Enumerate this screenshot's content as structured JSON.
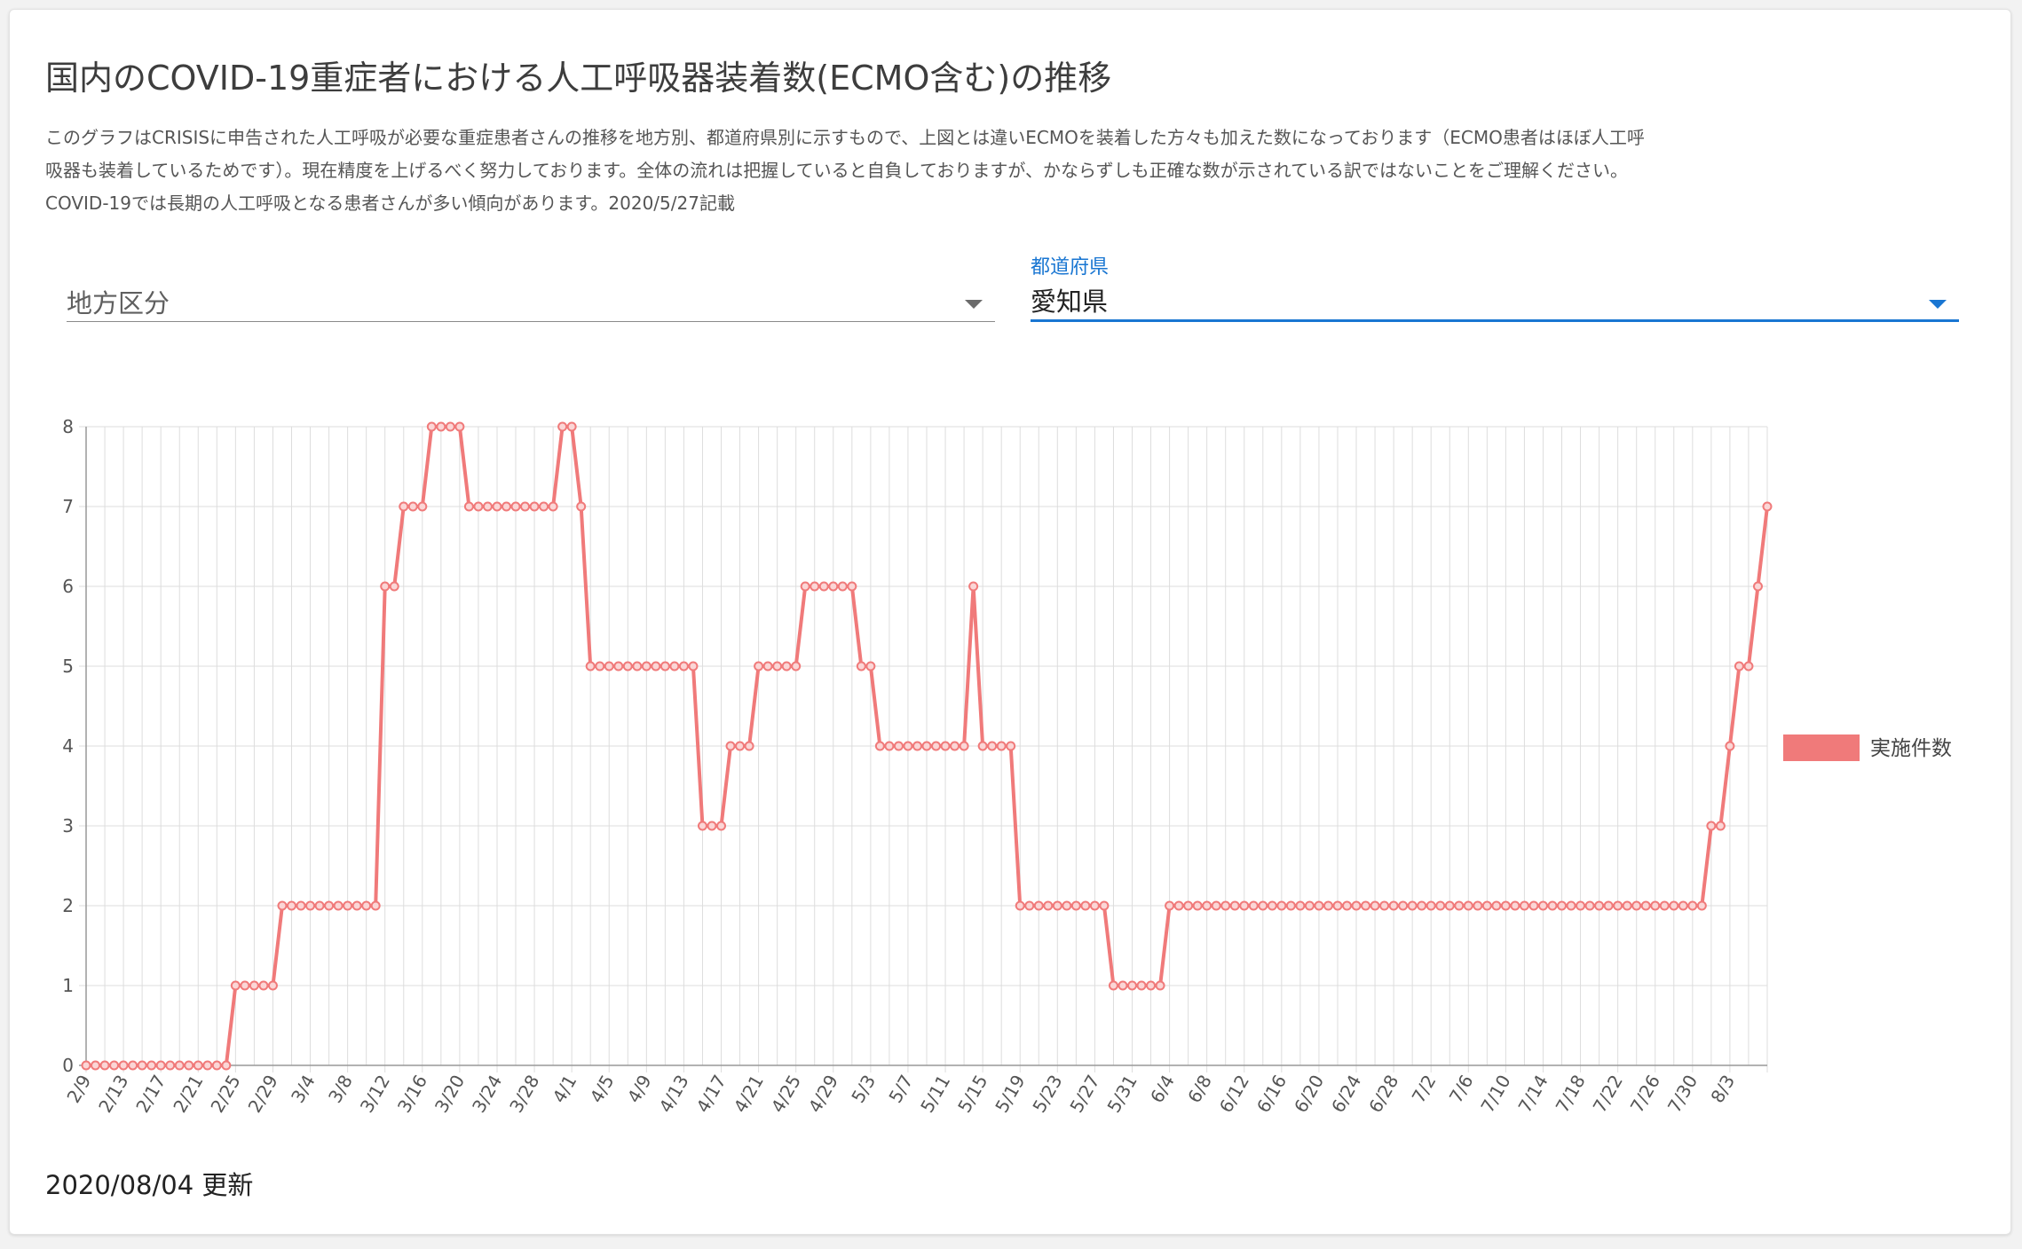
{
  "header": {
    "title": "国内のCOVID-19重症者における人工呼吸器装着数(ECMO含む)の推移",
    "description": [
      "このグラフはCRISISに申告された人工呼吸が必要な重症患者さんの推移を地方別、都道府県別に示すもので、上図とは違いECMOを装着した方々も加えた数になっております（ECMO患者はほぼ人工呼",
      "吸器も装着しているためです）。現在精度を上げるべく努力しております。全体の流れは把握していると自負しておりますが、かならずしも正確な数が示されている訳ではないことをご理解ください。",
      "COVID-19では長期の人工呼吸となる患者さんが多い傾向があります。2020/5/27記載"
    ]
  },
  "filters": {
    "region": {
      "placeholder": "地方区分",
      "value": ""
    },
    "prefecture": {
      "label": "都道府県",
      "value": "愛知県"
    }
  },
  "footer": {
    "updated": "2020/08/04 更新"
  },
  "colors": {
    "series": "#f07a7a",
    "accent": "#1976d2",
    "grid": "#dddddd",
    "axis": "#999999"
  },
  "chart_data": {
    "type": "line",
    "legend_position": "right",
    "grid": true,
    "ylim": [
      0,
      8
    ],
    "yticks": [
      0,
      1,
      2,
      3,
      4,
      5,
      6,
      7,
      8
    ],
    "xtick_labels": [
      "2/9",
      "2/13",
      "2/17",
      "2/21",
      "2/25",
      "2/29",
      "3/4",
      "3/8",
      "3/12",
      "3/16",
      "3/20",
      "3/24",
      "3/28",
      "4/1",
      "4/5",
      "4/9",
      "4/13",
      "4/17",
      "4/21",
      "4/25",
      "4/29",
      "5/3",
      "5/7",
      "5/11",
      "5/15",
      "5/19",
      "5/23",
      "5/27",
      "5/31",
      "6/4",
      "6/8",
      "6/12",
      "6/16",
      "6/20",
      "6/24",
      "6/28",
      "7/2",
      "7/6",
      "7/10",
      "7/14",
      "7/18",
      "7/22",
      "7/26",
      "7/30",
      "8/3"
    ],
    "series": [
      {
        "name": "実施件数",
        "x_start": "2020-02-09",
        "x_end": "2020-08-04",
        "values": [
          0,
          0,
          0,
          0,
          0,
          0,
          0,
          0,
          0,
          0,
          0,
          0,
          0,
          0,
          0,
          0,
          1,
          1,
          1,
          1,
          1,
          2,
          2,
          2,
          2,
          2,
          2,
          2,
          2,
          2,
          2,
          2,
          6,
          6,
          7,
          7,
          7,
          8,
          8,
          8,
          8,
          7,
          7,
          7,
          7,
          7,
          7,
          7,
          7,
          7,
          7,
          8,
          8,
          7,
          5,
          5,
          5,
          5,
          5,
          5,
          5,
          5,
          5,
          5,
          5,
          5,
          3,
          3,
          3,
          4,
          4,
          4,
          5,
          5,
          5,
          5,
          5,
          6,
          6,
          6,
          6,
          6,
          6,
          5,
          5,
          4,
          4,
          4,
          4,
          4,
          4,
          4,
          4,
          4,
          4,
          6,
          4,
          4,
          4,
          4,
          2,
          2,
          2,
          2,
          2,
          2,
          2,
          2,
          2,
          2,
          1,
          1,
          1,
          1,
          1,
          1,
          2,
          2,
          2,
          2,
          2,
          2,
          2,
          2,
          2,
          2,
          2,
          2,
          2,
          2,
          2,
          2,
          2,
          2,
          2,
          2,
          2,
          2,
          2,
          2,
          2,
          2,
          2,
          2,
          2,
          2,
          2,
          2,
          2,
          2,
          2,
          2,
          2,
          2,
          2,
          2,
          2,
          2,
          2,
          2,
          2,
          2,
          2,
          2,
          2,
          2,
          2,
          2,
          2,
          2,
          2,
          2,
          2,
          2,
          3,
          3,
          4,
          5,
          5,
          6,
          7
        ]
      }
    ]
  }
}
